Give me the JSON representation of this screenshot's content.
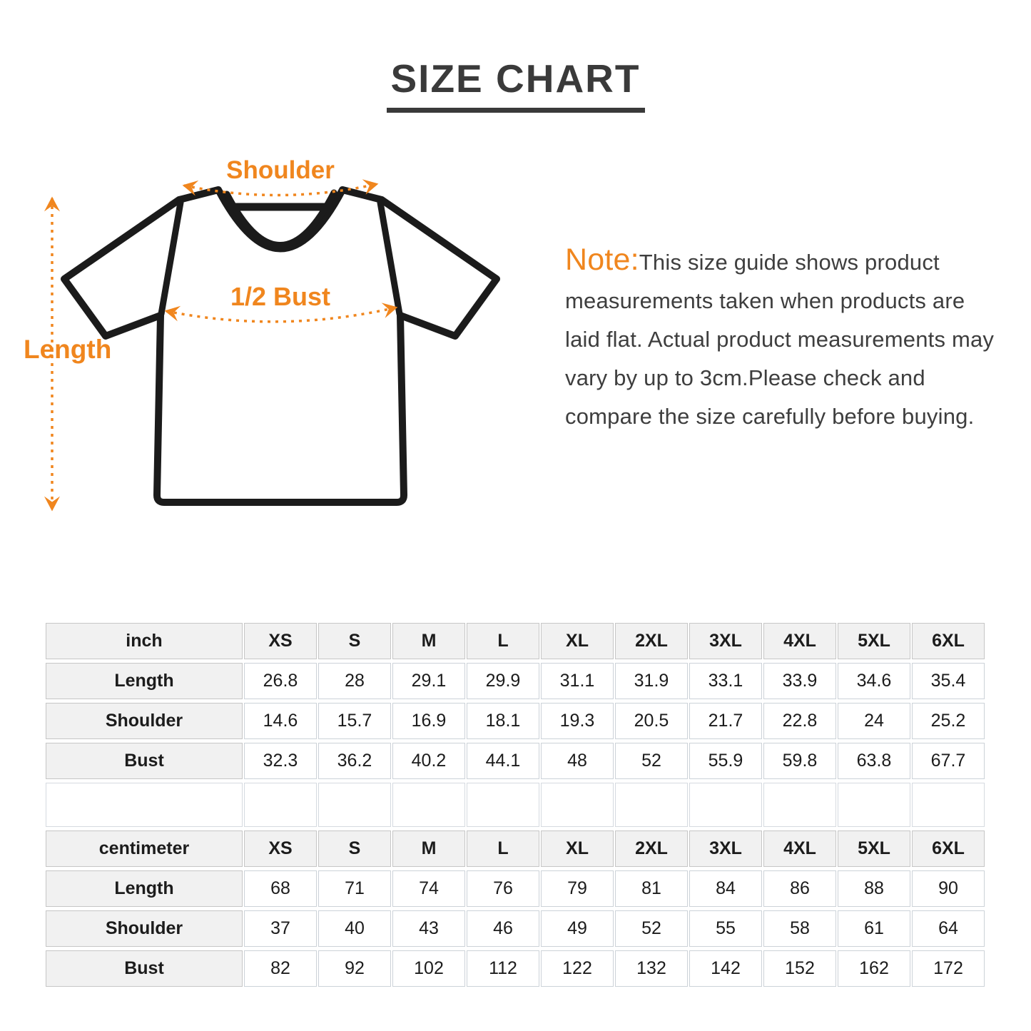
{
  "title": "SIZE CHART",
  "diagram": {
    "shoulder_label": "Shoulder",
    "bust_label": "1/2 Bust",
    "length_label": "Length"
  },
  "note": {
    "prefix": "Note:",
    "body": "This size guide shows product measurements taken when products are laid flat. Actual product measurements may vary by up to 3cm.Please check and compare the size carefully before buying."
  },
  "colors": {
    "accent_orange": "#F0861E",
    "text_dark": "#3a3a3a",
    "shirt_outline": "#1b1b1b",
    "table_header_bg": "#f1f1f1"
  },
  "tables": [
    {
      "unit": "inch",
      "sizes": [
        "XS",
        "S",
        "M",
        "L",
        "XL",
        "2XL",
        "3XL",
        "4XL",
        "5XL",
        "6XL"
      ],
      "rows": [
        {
          "label": "Length",
          "values": [
            "26.8",
            "28",
            "29.1",
            "29.9",
            "31.1",
            "31.9",
            "33.1",
            "33.9",
            "34.6",
            "35.4"
          ]
        },
        {
          "label": "Shoulder",
          "values": [
            "14.6",
            "15.7",
            "16.9",
            "18.1",
            "19.3",
            "20.5",
            "21.7",
            "22.8",
            "24",
            "25.2"
          ]
        },
        {
          "label": "Bust",
          "values": [
            "32.3",
            "36.2",
            "40.2",
            "44.1",
            "48",
            "52",
            "55.9",
            "59.8",
            "63.8",
            "67.7"
          ]
        }
      ]
    },
    {
      "unit": "centimeter",
      "sizes": [
        "XS",
        "S",
        "M",
        "L",
        "XL",
        "2XL",
        "3XL",
        "4XL",
        "5XL",
        "6XL"
      ],
      "rows": [
        {
          "label": "Length",
          "values": [
            "68",
            "71",
            "74",
            "76",
            "79",
            "81",
            "84",
            "86",
            "88",
            "90"
          ]
        },
        {
          "label": "Shoulder",
          "values": [
            "37",
            "40",
            "43",
            "46",
            "49",
            "52",
            "55",
            "58",
            "61",
            "64"
          ]
        },
        {
          "label": "Bust",
          "values": [
            "82",
            "92",
            "102",
            "112",
            "122",
            "132",
            "142",
            "152",
            "162",
            "172"
          ]
        }
      ]
    }
  ]
}
